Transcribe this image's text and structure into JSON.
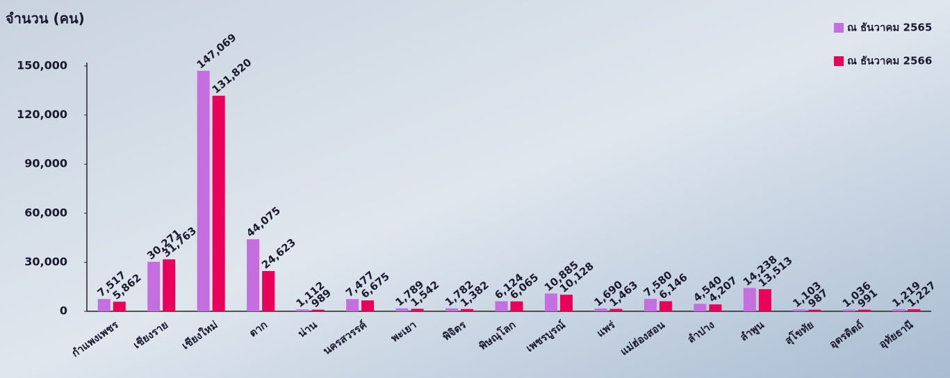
{
  "chart_data": {
    "type": "bar",
    "y_label": "จำนวน (คน)",
    "categories": [
      "กำแพงเพชร",
      "เชียงราย",
      "เชียงใหม่",
      "ตาก",
      "น่าน",
      "นครสวรรค์",
      "พะเยา",
      "พิจิตร",
      "พิษณุโลก",
      "เพชรบูรณ์",
      "แพร่",
      "แม่ฮ่องสอน",
      "ลำปาง",
      "ลำพูน",
      "สุโขทัย",
      "อุตรดิตถ์",
      "อุทัยธานี"
    ],
    "series": [
      {
        "name": "ณ ธันวาคม 2565",
        "color": "#c46ee0",
        "values": [
          7517,
          30271,
          147069,
          44075,
          1112,
          7477,
          1789,
          1782,
          6124,
          10885,
          1690,
          7580,
          4540,
          14238,
          1103,
          1036,
          1219
        ],
        "value_labels": [
          "7,517",
          "30,271",
          "147,069",
          "44,075",
          "1,112",
          "7,477",
          "1,789",
          "1,782",
          "6,124",
          "10,885",
          "1,690",
          "7,580",
          "4,540",
          "14,238",
          "1,103",
          "1,036",
          "1,219"
        ]
      },
      {
        "name": "ณ ธันวาคม 2566",
        "color": "#e8005a",
        "values": [
          5862,
          31763,
          131820,
          24623,
          989,
          6675,
          1542,
          1382,
          6065,
          10128,
          1463,
          6146,
          4207,
          13513,
          987,
          991,
          1227
        ],
        "value_labels": [
          "5,862",
          "31,763",
          "131,820",
          "24,623",
          "989",
          "6,675",
          "1,542",
          "1,382",
          "6,065",
          "10,128",
          "1,463",
          "6,146",
          "4,207",
          "13,513",
          "987",
          "991",
          "1,227"
        ]
      }
    ],
    "ylim": [
      0,
      150000
    ],
    "yticks": [
      0,
      {
        "value": 30000,
        "label": "30,000"
      },
      {
        "value": 60000,
        "label": "60,000"
      },
      {
        "value": 90000,
        "label": "90,000"
      },
      {
        "value": 120000,
        "label": "120,000"
      },
      {
        "value": 150000,
        "label": "150,000"
      }
    ],
    "legend": "top-right"
  }
}
